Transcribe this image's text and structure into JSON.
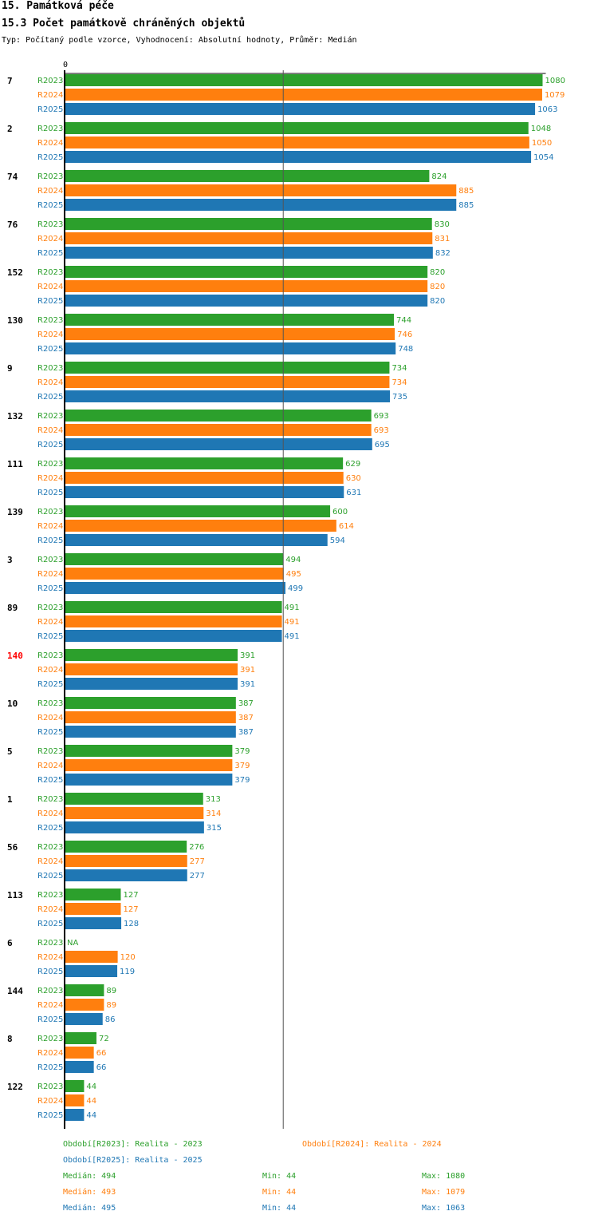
{
  "header": {
    "title": "15. Památková péče",
    "subtitle": "15.3 Počet památkově chráněných objektů",
    "type_line": "Typ: Počítaný podle vzorce, Vyhodnocení: Absolutní hodnoty, Průměr: Medián"
  },
  "chart_data": {
    "type": "bar",
    "orientation": "horizontal",
    "axis_zero_label": "0",
    "xlim": [
      0,
      1080
    ],
    "median_line": 494,
    "highlight_category": "140",
    "highlight_color": "#ff0000",
    "na_label": "NA",
    "categories": [
      "7",
      "2",
      "74",
      "76",
      "152",
      "130",
      "9",
      "132",
      "111",
      "139",
      "3",
      "89",
      "140",
      "10",
      "5",
      "1",
      "56",
      "113",
      "6",
      "144",
      "8",
      "122"
    ],
    "series": [
      {
        "name": "R2023",
        "color": "#2ca02c",
        "values": [
          1080,
          1048,
          824,
          830,
          820,
          744,
          734,
          693,
          629,
          600,
          494,
          491,
          391,
          387,
          379,
          313,
          276,
          127,
          null,
          89,
          72,
          44
        ]
      },
      {
        "name": "R2024",
        "color": "#ff7f0e",
        "values": [
          1079,
          1050,
          885,
          831,
          820,
          746,
          734,
          693,
          630,
          614,
          495,
          491,
          391,
          387,
          379,
          314,
          277,
          127,
          120,
          89,
          66,
          44
        ]
      },
      {
        "name": "R2025",
        "color": "#1f77b4",
        "values": [
          1063,
          1054,
          885,
          832,
          820,
          748,
          735,
          695,
          631,
          594,
          499,
          491,
          391,
          387,
          379,
          315,
          277,
          128,
          119,
          86,
          66,
          44
        ]
      }
    ]
  },
  "legend": {
    "periods": [
      {
        "text": "Období[R2023]: Realita - 2023",
        "color": "#2ca02c"
      },
      {
        "text": "Období[R2024]: Realita - 2024",
        "color": "#ff7f0e"
      },
      {
        "text": "Období[R2025]: Realita - 2025",
        "color": "#1f77b4"
      }
    ],
    "stats": [
      {
        "median": "Medián: 494",
        "min": "Min: 44",
        "max": "Max: 1080",
        "color": "#2ca02c"
      },
      {
        "median": "Medián: 493",
        "min": "Min: 44",
        "max": "Max: 1079",
        "color": "#ff7f0e"
      },
      {
        "median": "Medián: 495",
        "min": "Min: 44",
        "max": "Max: 1063",
        "color": "#1f77b4"
      }
    ]
  }
}
